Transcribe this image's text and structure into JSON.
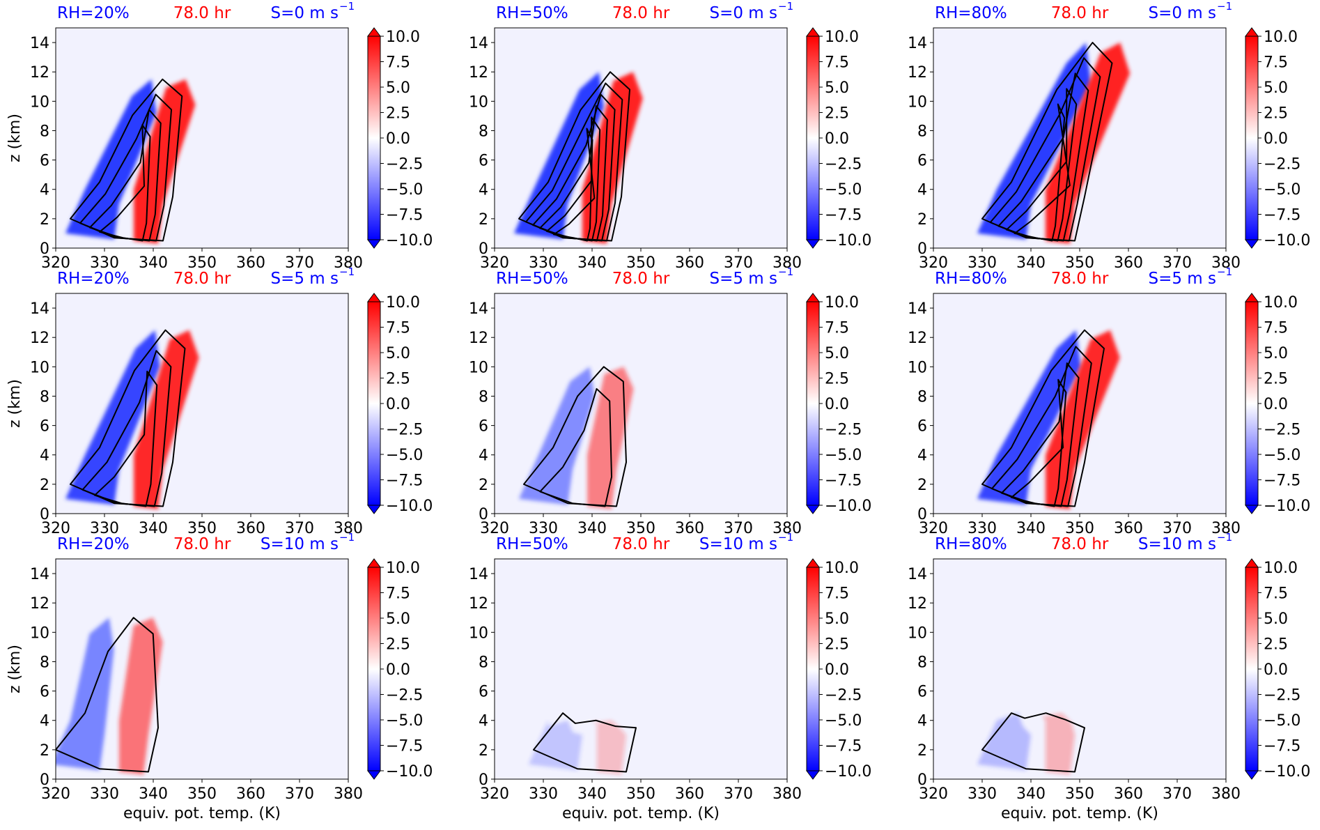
{
  "colors": {
    "blue_label": "#0000ff",
    "red_label": "#ff0000",
    "background_field": "#f2f2fe",
    "contour": "#000000"
  },
  "chart_data": {
    "type": "contour-panels",
    "rows": 3,
    "cols": 3,
    "xlabel": "equiv. pot. temp. (K)",
    "ylabel": "z (km)",
    "xlim": [
      320,
      380
    ],
    "ylim": [
      0,
      15
    ],
    "xticks": [
      "320",
      "330",
      "340",
      "350",
      "360",
      "370",
      "380"
    ],
    "yticks": [
      "0",
      "2",
      "4",
      "6",
      "8",
      "10",
      "12",
      "14"
    ],
    "colorbar": {
      "colormap": "bwr",
      "range": [
        -10,
        10
      ],
      "extend": "both",
      "ticks": [
        "10.0",
        "7.5",
        "5.0",
        "2.5",
        "0.0",
        "−2.5",
        "−5.0",
        "−7.5",
        "−10.0"
      ]
    },
    "time_label": "78.0 hr",
    "panels": [
      {
        "rh": "RH=20%",
        "shear": "S=0 m s",
        "shear_exp": "−1",
        "contour_levels": 4
      },
      {
        "rh": "RH=50%",
        "shear": "S=0 m s",
        "shear_exp": "−1",
        "contour_levels": 6
      },
      {
        "rh": "RH=80%",
        "shear": "S=0 m s",
        "shear_exp": "−1",
        "contour_levels": 5
      },
      {
        "rh": "RH=20%",
        "shear": "S=5 m s",
        "shear_exp": "−1",
        "contour_levels": 3
      },
      {
        "rh": "RH=50%",
        "shear": "S=5 m s",
        "shear_exp": "−1",
        "contour_levels": 2
      },
      {
        "rh": "RH=80%",
        "shear": "S=5 m s",
        "shear_exp": "−1",
        "contour_levels": 4
      },
      {
        "rh": "RH=20%",
        "shear": "S=10 m s",
        "shear_exp": "−1",
        "contour_levels": 1
      },
      {
        "rh": "RH=50%",
        "shear": "S=10 m s",
        "shear_exp": "−1",
        "contour_levels": 1
      },
      {
        "rh": "RH=80%",
        "shear": "S=10 m s",
        "shear_exp": "−1",
        "contour_levels": 1
      }
    ]
  }
}
